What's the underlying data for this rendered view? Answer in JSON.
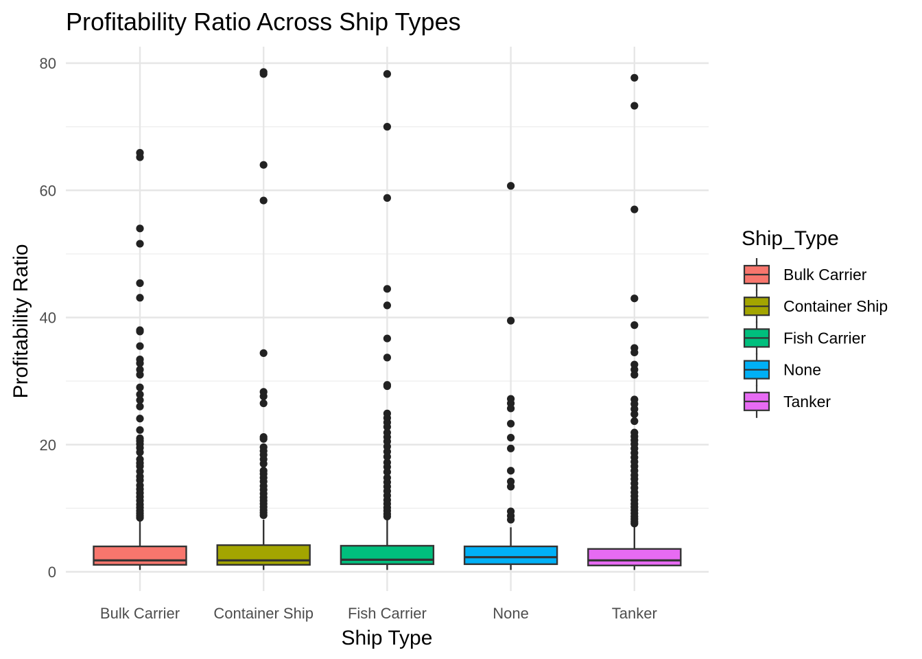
{
  "chart_data": {
    "type": "boxplot",
    "title": "Profitability Ratio Across Ship Types",
    "xlabel": "Ship Type",
    "ylabel": "Profitability Ratio",
    "ylim": [
      -3,
      83
    ],
    "yticks": [
      0,
      20,
      40,
      60,
      80
    ],
    "grid": true,
    "categories": [
      "Bulk Carrier",
      "Container Ship",
      "Fish Carrier",
      "None",
      "Tanker"
    ],
    "legend": {
      "title": "Ship_Type",
      "position": "right",
      "entries": [
        "Bulk Carrier",
        "Container Ship",
        "Fish Carrier",
        "None",
        "Tanker"
      ]
    },
    "series": [
      {
        "name": "Bulk Carrier",
        "color": "#F8766D",
        "q1": 1.1,
        "median": 1.8,
        "q3": 4.0,
        "whisker_low": 0.3,
        "whisker_high": 8.0,
        "outliers": [
          65.9,
          65.2,
          54.0,
          51.6,
          45.4,
          43.1,
          38.0,
          37.8,
          35.5,
          33.4,
          32.8,
          31.8,
          31.0,
          29.0,
          27.9,
          27.0,
          26.0,
          24.1,
          22.3,
          21.0,
          20.6,
          20.1,
          19.5,
          18.8,
          17.7,
          17.1,
          16.6,
          15.8,
          15.0,
          14.4,
          13.6,
          13.0,
          12.4,
          11.8,
          11.2,
          10.6,
          10.1,
          9.6,
          9.2,
          8.8,
          8.5
        ]
      },
      {
        "name": "Container Ship",
        "color": "#A3A500",
        "q1": 1.1,
        "median": 1.8,
        "q3": 4.2,
        "whisker_low": 0.3,
        "whisker_high": 8.2,
        "outliers": [
          78.6,
          78.3,
          64.0,
          58.4,
          34.4,
          28.3,
          27.6,
          26.5,
          21.2,
          20.9,
          19.6,
          19.0,
          18.4,
          17.7,
          17.0,
          15.9,
          15.4,
          14.8,
          14.2,
          13.5,
          12.9,
          12.3,
          11.7,
          11.2,
          10.7,
          10.2,
          9.7,
          9.3,
          8.9
        ]
      },
      {
        "name": "Fish Carrier",
        "color": "#00BF7D",
        "q1": 1.2,
        "median": 1.9,
        "q3": 4.1,
        "whisker_low": 0.3,
        "whisker_high": 8.2,
        "outliers": [
          78.3,
          70.0,
          58.8,
          44.5,
          41.9,
          36.7,
          33.7,
          29.4,
          29.2,
          24.9,
          24.2,
          23.5,
          22.8,
          21.9,
          21.2,
          20.5,
          19.7,
          18.9,
          18.1,
          17.2,
          16.5,
          15.7,
          14.8,
          14.1,
          13.4,
          12.7,
          12.0,
          11.3,
          10.7,
          10.1,
          9.6,
          9.1,
          8.7
        ]
      },
      {
        "name": "None",
        "color": "#00B0F6",
        "q1": 1.2,
        "median": 2.3,
        "q3": 4.0,
        "whisker_low": 0.3,
        "whisker_high": 7.0,
        "outliers": [
          60.7,
          39.5,
          27.2,
          26.5,
          25.7,
          23.3,
          21.1,
          19.4,
          15.9,
          14.2,
          13.4,
          9.5,
          8.8,
          8.2
        ]
      },
      {
        "name": "Tanker",
        "color": "#E76BF3",
        "q1": 1.0,
        "median": 1.8,
        "q3": 3.6,
        "whisker_low": 0.3,
        "whisker_high": 7.4,
        "outliers": [
          77.7,
          73.3,
          57.0,
          43.0,
          38.8,
          35.2,
          34.5,
          32.6,
          31.8,
          31.0,
          27.1,
          26.4,
          25.6,
          24.8,
          23.7,
          21.9,
          21.3,
          20.7,
          20.1,
          19.4,
          18.7,
          18.0,
          17.3,
          16.6,
          15.9,
          15.2,
          14.6,
          13.9,
          13.2,
          12.5,
          11.9,
          11.3,
          10.7,
          10.2,
          9.7,
          9.2,
          8.7,
          8.3,
          7.9,
          7.6
        ]
      }
    ]
  }
}
